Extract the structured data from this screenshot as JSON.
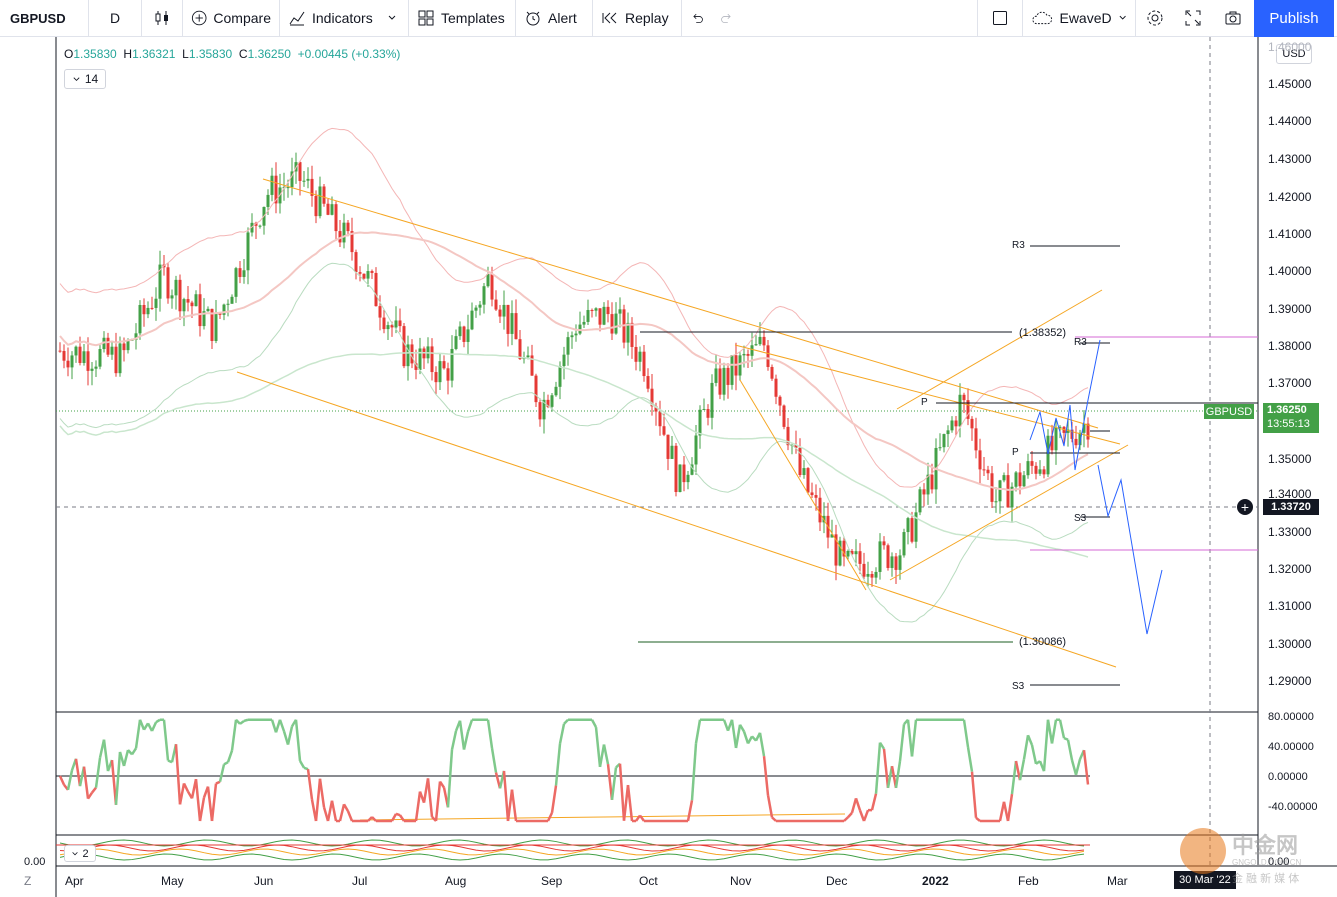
{
  "toolbar": {
    "symbol": "GBPUSD",
    "interval": "D",
    "compare": "Compare",
    "indicators": "Indicators",
    "templates": "Templates",
    "alert": "Alert",
    "replay": "Replay",
    "layout": "EwaveD",
    "publish": "Publish"
  },
  "legend": {
    "open_label": "O",
    "open": "1.35830",
    "high_label": "H",
    "high": "1.36321",
    "low_label": "L",
    "low": "1.35830",
    "close_label": "C",
    "close": "1.36250",
    "change": "+0.00445 (+0.33%)",
    "period": "14",
    "sub_period": "2"
  },
  "price_axis": {
    "currency": "USD",
    "labels": [
      "1.46000",
      "1.45000",
      "1.44000",
      "1.43000",
      "1.42000",
      "1.41000",
      "1.40000",
      "1.39000",
      "1.38000",
      "1.37000",
      "1.35000",
      "1.34000",
      "1.33000",
      "1.32000",
      "1.31000",
      "1.30000",
      "1.29000"
    ],
    "symbol_tag": "GBPUSD",
    "last_price": "1.36250",
    "countdown": "13:55:13",
    "crosshair_price": "1.33720"
  },
  "osc_axis": {
    "labels": [
      "80.00000",
      "40.00000",
      "0.00000",
      "-40.00000"
    ],
    "sub_zero": "0.00",
    "sub_zero_right": "0.00"
  },
  "time_axis": {
    "labels": [
      "Apr",
      "May",
      "Jun",
      "Jul",
      "Aug",
      "Sep",
      "Oct",
      "Nov",
      "Dec",
      "2022",
      "Feb",
      "Mar"
    ],
    "crosshair_date": "30 Mar '22",
    "left_mark": "Z"
  },
  "annotations": {
    "r3": "R3",
    "p": "P",
    "s3": "S3",
    "high_level": "(1.38352)",
    "low_level": "(1.30086)"
  },
  "watermark": {
    "text": "中金网",
    "sub": "GNGOLD.COM.CN",
    "tagline": "金 融 新 媒 体"
  },
  "colors": {
    "up": "#43a047",
    "down": "#e53935",
    "orange": "#f5a623",
    "blue": "#2962ff",
    "magenta": "#d46ad4",
    "accent": "#2962ff"
  },
  "chart_data": {
    "type": "candlestick",
    "seed_price": 1.378,
    "ylim": [
      1.285,
      1.463
    ]
  }
}
